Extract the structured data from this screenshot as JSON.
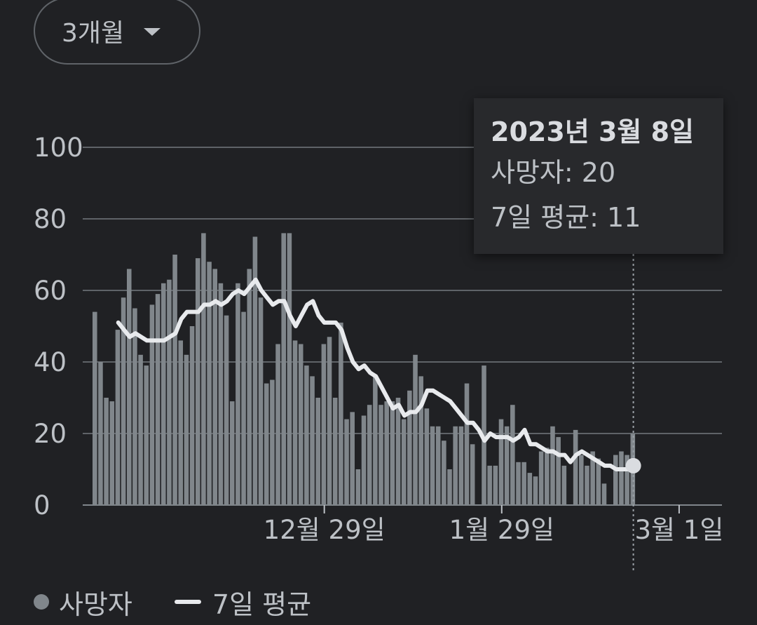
{
  "range_selector": {
    "label": "3개월",
    "icon": "caret-down-icon"
  },
  "tooltip": {
    "date": "2023년 3월 8일",
    "deaths_label": "사망자",
    "deaths_value": "20",
    "avg_label": "7일 평균",
    "avg_value": "11"
  },
  "legend": {
    "deaths": "사망자",
    "avg": "7일 평균"
  },
  "colors": {
    "background": "#202124",
    "bar": "#80868b",
    "line": "#e8eaed",
    "grid": "#5f6368",
    "text": "#bdc1c6"
  },
  "chart_data": {
    "type": "bar",
    "ylim": [
      0,
      100
    ],
    "yticks": [
      "0",
      "20",
      "40",
      "60",
      "80",
      "100"
    ],
    "x_tick_labels": [
      {
        "label": "12월 29일",
        "index": 40
      },
      {
        "label": "1월 29일",
        "index": 71
      },
      {
        "label": "3월 1일",
        "index": 102
      }
    ],
    "series": [
      {
        "name": "사망자",
        "type": "bar",
        "values": [
          54,
          40,
          30,
          29,
          49,
          58,
          66,
          55,
          42,
          39,
          56,
          59,
          62,
          63,
          70,
          46,
          42,
          50,
          69,
          76,
          68,
          66,
          62,
          53,
          29,
          62,
          54,
          66,
          75,
          58,
          34,
          35,
          45,
          76,
          76,
          46,
          45,
          39,
          36,
          30,
          45,
          47,
          30,
          51,
          24,
          26,
          10,
          25,
          28,
          36,
          28,
          29,
          29,
          30,
          24,
          32,
          42,
          36,
          27,
          22,
          22,
          18,
          10,
          22,
          22,
          34,
          17,
          0,
          39,
          11,
          11,
          24,
          22,
          28,
          12,
          12,
          9,
          8,
          15,
          16,
          22,
          19,
          11,
          0,
          21,
          14,
          11,
          15,
          13,
          6,
          0,
          14,
          15,
          14,
          20
        ],
        "color": "#80868b"
      },
      {
        "name": "7일 평균",
        "type": "line",
        "values": [
          51,
          49,
          47,
          48,
          47,
          46,
          46,
          46,
          46,
          47,
          48,
          52,
          54,
          54,
          54,
          56,
          56,
          57,
          56,
          57,
          59,
          60,
          59,
          61,
          63,
          60,
          58,
          56,
          57,
          57,
          53,
          50,
          53,
          56,
          57,
          53,
          51,
          51,
          51,
          49,
          44,
          40,
          38,
          39,
          37,
          36,
          33,
          30,
          27,
          28,
          25,
          26,
          26,
          28,
          32,
          32,
          31,
          30,
          29,
          27,
          25,
          23,
          23,
          21,
          18,
          20,
          19,
          19,
          19,
          18,
          19,
          21,
          17,
          17,
          16,
          15,
          15,
          14,
          14,
          12,
          14,
          15,
          14,
          13,
          12,
          11,
          11,
          10,
          10,
          10,
          11
        ]
      }
    ],
    "highlight": {
      "date": "2023년 3월 8일",
      "deaths": 20,
      "avg": 11
    }
  }
}
